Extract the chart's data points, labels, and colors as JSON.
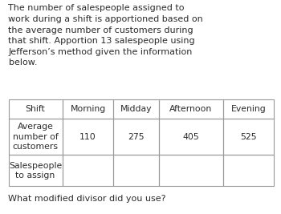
{
  "paragraph_lines": [
    "The number of salespeople assigned to",
    "work during a shift is apportioned based on",
    "the average number of customers during",
    "that shift. Apportion 13 salespeople using",
    "Jefferson’s method given the information",
    "below."
  ],
  "footer": "What modified divisor did you use?",
  "col_headers": [
    "Shift",
    "Morning",
    "Midday",
    "Afternoon",
    "Evening"
  ],
  "row1_label": "Average\nnumber of\ncustomers",
  "row2_label": "Salespeople\nto assign",
  "row1_values": [
    "110",
    "275",
    "405",
    "525"
  ],
  "row2_values": [
    "",
    "",
    "",
    ""
  ],
  "bg_color": "#ffffff",
  "text_color": "#2b2b2b",
  "table_line_color": "#999999",
  "para_fontsize": 8.0,
  "table_fontsize": 7.8,
  "footer_fontsize": 8.0
}
